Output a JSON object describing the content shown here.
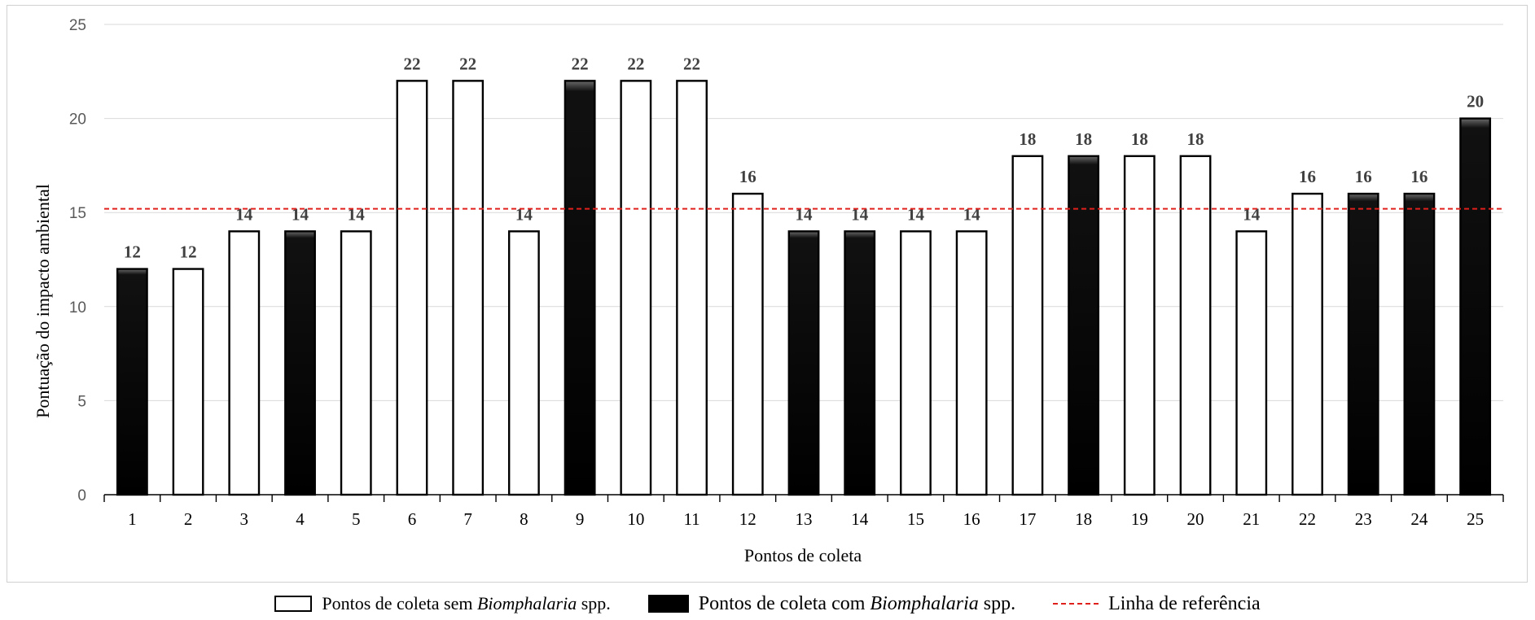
{
  "chart_data": {
    "type": "bar",
    "categories": [
      "1",
      "2",
      "3",
      "4",
      "5",
      "6",
      "7",
      "8",
      "9",
      "10",
      "11",
      "12",
      "13",
      "14",
      "15",
      "16",
      "17",
      "18",
      "19",
      "20",
      "21",
      "22",
      "23",
      "24",
      "25"
    ],
    "values": [
      12,
      12,
      14,
      14,
      14,
      22,
      22,
      14,
      22,
      22,
      22,
      16,
      14,
      14,
      14,
      14,
      18,
      18,
      18,
      18,
      14,
      16,
      16,
      16,
      20
    ],
    "with_biomphalaria": [
      true,
      false,
      false,
      true,
      false,
      false,
      false,
      false,
      true,
      false,
      false,
      false,
      true,
      true,
      false,
      false,
      false,
      true,
      false,
      false,
      false,
      false,
      true,
      true,
      true
    ],
    "reference_line": 15.2,
    "ylim": [
      0,
      25
    ],
    "yticks": [
      0,
      5,
      10,
      15,
      20,
      25
    ],
    "xlabel": "Pontos de coleta",
    "ylabel": "Pontuação do impacto ambiental",
    "grid": true,
    "legend_position": "bottom",
    "colors": {
      "open_fill": "#ffffff",
      "filled": "#000000",
      "reference": "#e0201c",
      "grid": "#d9d9d9",
      "label": "#404040"
    }
  },
  "legend": {
    "open_prefix": "Pontos de coleta sem ",
    "open_genus": "Biomphalaria",
    "open_suffix": " spp.",
    "filled_prefix": "Pontos de coleta com ",
    "filled_genus": "Biomphalaria",
    "filled_suffix": " spp.",
    "reference": "Linha de referência"
  }
}
